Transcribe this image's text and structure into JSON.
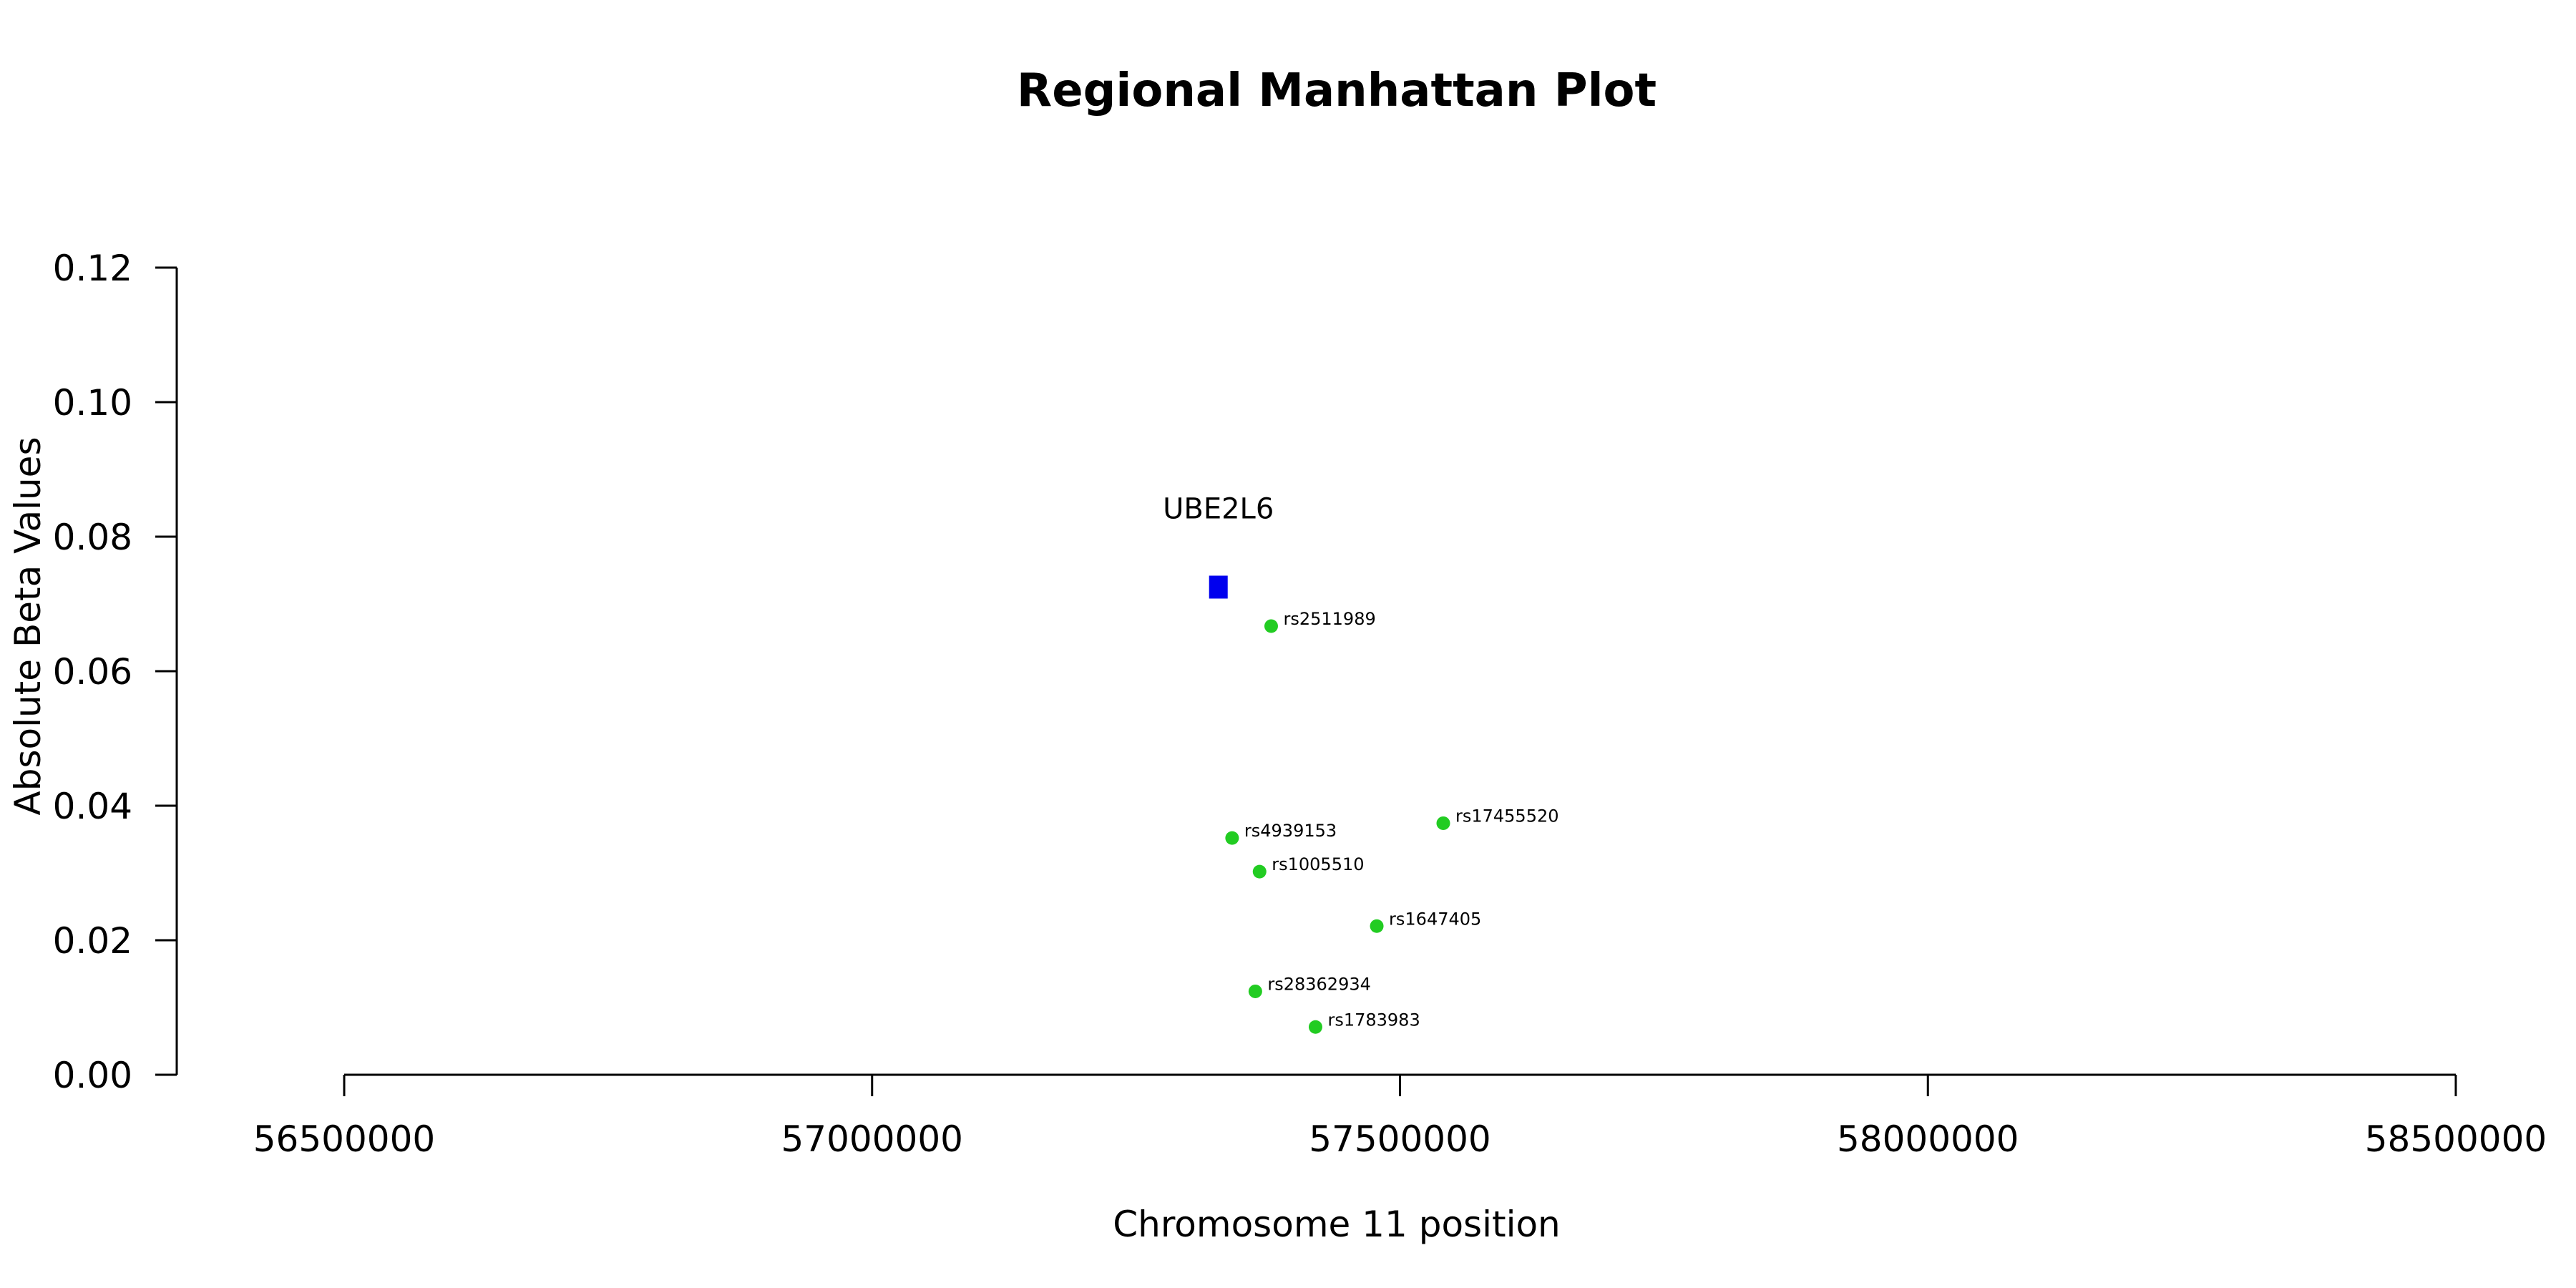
{
  "chart_data": {
    "type": "scatter",
    "title": "Regional Manhattan Plot",
    "xlabel": "Chromosome 11 position",
    "ylabel": "Absolute Beta Values",
    "xlim": [
      56500000,
      58500000
    ],
    "ylim": [
      0,
      0.12
    ],
    "x_ticks": [
      "56500000",
      "57000000",
      "57500000",
      "58000000",
      "58500000"
    ],
    "y_ticks": [
      "0.00",
      "0.02",
      "0.04",
      "0.06",
      "0.08",
      "0.10",
      "0.12"
    ],
    "gene": {
      "name": "UBE2L6",
      "x": 57328000,
      "y": 0.0725,
      "color": "#0000ee"
    },
    "snp_color": "#22cc22",
    "series": [
      {
        "points": [
          {
            "label": "rs2511989",
            "x": 57378000,
            "y": 0.0667
          },
          {
            "label": "rs17455520",
            "x": 57541000,
            "y": 0.0374
          },
          {
            "label": "rs4939153",
            "x": 57341000,
            "y": 0.0352
          },
          {
            "label": "rs1005510",
            "x": 57367000,
            "y": 0.0302
          },
          {
            "label": "rs1647405",
            "x": 57478000,
            "y": 0.0221
          },
          {
            "label": "rs28362934",
            "x": 57363000,
            "y": 0.0124
          },
          {
            "label": "rs1783983",
            "x": 57420000,
            "y": 0.0071
          }
        ]
      }
    ]
  }
}
